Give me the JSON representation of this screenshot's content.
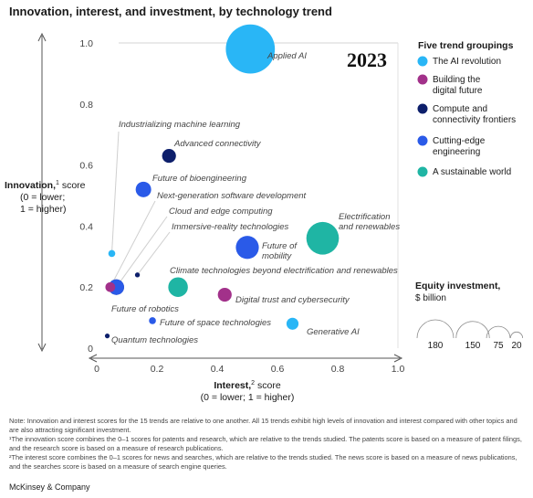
{
  "chart_data": {
    "type": "scatter",
    "title": "Innovation, interest, and investment, by technology trend",
    "year_label": "2023",
    "xlabel": "Interest,",
    "xlabel_sup": "2",
    "xlabel_rest": " score",
    "xlabel_line2": "(0 = lower; 1 = higher)",
    "ylabel": "Innovation,",
    "ylabel_sup": "1",
    "ylabel_rest": " score",
    "ylabel_line2": "(0 = lower;",
    "ylabel_line3": "1 = higher)",
    "xlim": [
      0,
      1
    ],
    "ylim": [
      0,
      1
    ],
    "x_ticks": [
      {
        "v": 0,
        "t": "0"
      },
      {
        "v": 0.2,
        "t": "0.2"
      },
      {
        "v": 0.4,
        "t": "0.4"
      },
      {
        "v": 0.6,
        "t": "0.6"
      },
      {
        "v": 0.8,
        "t": "0.8"
      },
      {
        "v": 1,
        "t": "1.0"
      }
    ],
    "y_ticks": [
      {
        "v": 0,
        "t": "0"
      },
      {
        "v": 0.2,
        "t": "0.2"
      },
      {
        "v": 0.4,
        "t": "0.4"
      },
      {
        "v": 0.6,
        "t": "0.6"
      },
      {
        "v": 0.8,
        "t": "0.8"
      },
      {
        "v": 1,
        "t": "1.0"
      }
    ],
    "groups": [
      {
        "key": "ai",
        "label_lines": [
          "The AI revolution"
        ],
        "color": "#29b6f6"
      },
      {
        "key": "digital",
        "label_lines": [
          "Building the",
          "digital future"
        ],
        "color": "#a2318a"
      },
      {
        "key": "compute",
        "label_lines": [
          "Compute and",
          "connectivity frontiers"
        ],
        "color": "#0d1f6b"
      },
      {
        "key": "engineering",
        "label_lines": [
          "Cutting-edge",
          "engineering"
        ],
        "color": "#2a5ae8"
      },
      {
        "key": "sustain",
        "label_lines": [
          "A sustainable world"
        ],
        "color": "#1fb5a4"
      }
    ],
    "legend_title": "Five trend groupings",
    "size_legend": {
      "title_lines": [
        "Equity investment,",
        "$ billion"
      ],
      "values": [
        180,
        150,
        75,
        20
      ]
    },
    "points": [
      {
        "name": "Applied AI",
        "group": "ai",
        "x": 0.51,
        "y": 0.98,
        "investment": 50
      },
      {
        "name": "Industrializing machine learning",
        "group": "ai",
        "x": 0.05,
        "y": 0.31,
        "investment": 1
      },
      {
        "name": "Generative AI",
        "group": "ai",
        "x": 0.65,
        "y": 0.08,
        "investment": 3
      },
      {
        "name": "Next-generation software development",
        "group": "digital",
        "x": 0.045,
        "y": 0.2,
        "investment": 2
      },
      {
        "name": "Digital trust and cybersecurity",
        "group": "digital",
        "x": 0.425,
        "y": 0.175,
        "investment": 4
      },
      {
        "name": "Advanced connectivity",
        "group": "compute",
        "x": 0.24,
        "y": 0.63,
        "investment": 4
      },
      {
        "name": "Cloud and edge computing",
        "group": "compute",
        "x": 0.065,
        "y": 0.2,
        "investment": 5
      },
      {
        "name": "Immersive-reality technologies",
        "group": "compute",
        "x": 0.135,
        "y": 0.24,
        "investment": 0.5
      },
      {
        "name": "Quantum technologies",
        "group": "compute",
        "x": 0.035,
        "y": 0.04,
        "investment": 0.2
      },
      {
        "name": "Future of bioengineering",
        "group": "engineering",
        "x": 0.155,
        "y": 0.52,
        "investment": 5
      },
      {
        "name": "Future of mobility",
        "group": "engineering",
        "x": 0.5,
        "y": 0.33,
        "investment": 11
      },
      {
        "name": "Future of robotics",
        "group": "engineering",
        "x": 0.065,
        "y": 0.2,
        "investment": 5
      },
      {
        "name": "Future of space technologies",
        "group": "engineering",
        "x": 0.185,
        "y": 0.09,
        "investment": 1
      },
      {
        "name": "Electrification and renewables",
        "group": "sustain",
        "x": 0.75,
        "y": 0.36,
        "investment": 22
      },
      {
        "name": "Climate technologies beyond electrification and renewables",
        "group": "sustain",
        "x": 0.27,
        "y": 0.2,
        "investment": 8
      }
    ]
  },
  "notes": {
    "note1": "Note: Innovation and interest scores for the 15 trends are relative to one another. All 15 trends exhibit high levels of innovation and interest compared with other topics and are also attracting significant investment.",
    "note2": "¹The innovation score combines the 0–1 scores for patents and research, which are relative to the trends studied. The patents score is based on a measure of patent filings, and the research score is based on a measure of research publications.",
    "note3": "²The interest score combines the 0–1 scores for news and searches, which are relative to the trends studied. The news score is based on a measure of news publications, and the searches score is based on a measure of search engine queries."
  },
  "footer": "McKinsey & Company"
}
